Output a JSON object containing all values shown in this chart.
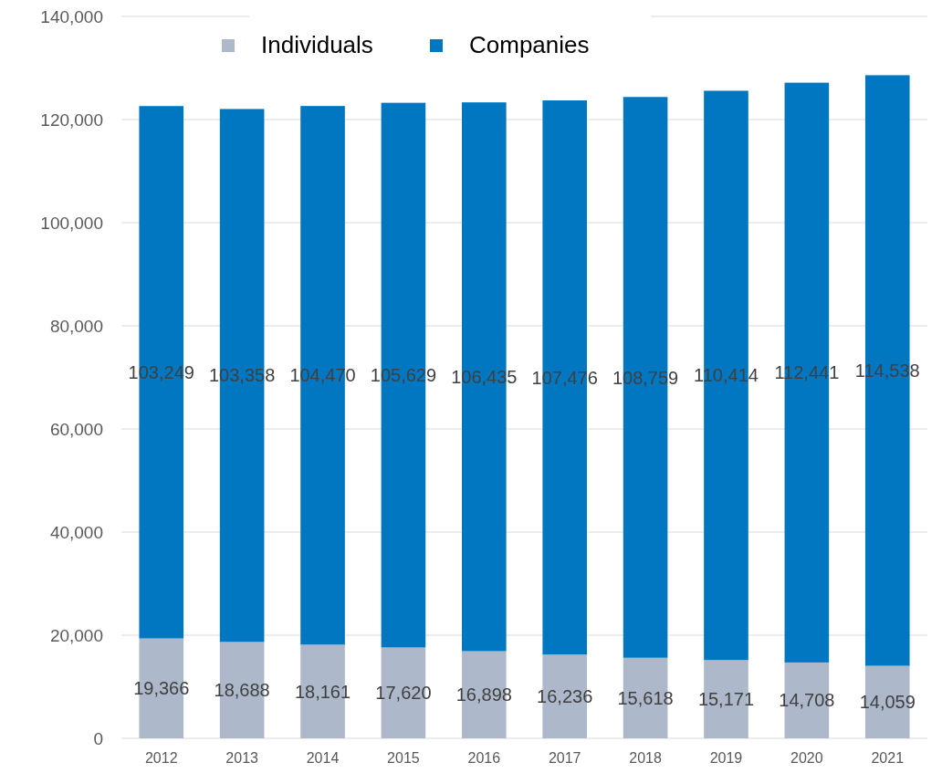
{
  "chart_data": {
    "type": "bar",
    "stacked": true,
    "categories": [
      "2012",
      "2013",
      "2014",
      "2015",
      "2016",
      "2017",
      "2018",
      "2019",
      "2020",
      "2021"
    ],
    "series": [
      {
        "name": "Individuals",
        "color": "#adb9ca",
        "values": [
          19366,
          18688,
          18161,
          17620,
          16898,
          16236,
          15618,
          15171,
          14708,
          14059
        ],
        "value_labels": [
          "19,366",
          "18,688",
          "18,161",
          "17,620",
          "16,898",
          "16,236",
          "15,618",
          "15,171",
          "14,708",
          "14,059"
        ]
      },
      {
        "name": "Companies",
        "color": "#0077c0",
        "values": [
          103249,
          103358,
          104470,
          105629,
          106435,
          107476,
          108759,
          110414,
          112441,
          114538
        ],
        "value_labels": [
          "103,249",
          "103,358",
          "104,470",
          "105,629",
          "106,435",
          "107,476",
          "108,759",
          "110,414",
          "112,441",
          "114,538"
        ]
      }
    ],
    "ylim": [
      0,
      140000
    ],
    "yticks": [
      {
        "value": 0,
        "label": "0"
      },
      {
        "value": 20000,
        "label": "20,000"
      },
      {
        "value": 40000,
        "label": "40,000"
      },
      {
        "value": 60000,
        "label": "60,000"
      },
      {
        "value": 80000,
        "label": "80,000"
      },
      {
        "value": 100000,
        "label": "100,000"
      },
      {
        "value": 120000,
        "label": "120,000"
      },
      {
        "value": 140000,
        "label": "140,000"
      }
    ],
    "grid": "y",
    "legend": "top"
  }
}
